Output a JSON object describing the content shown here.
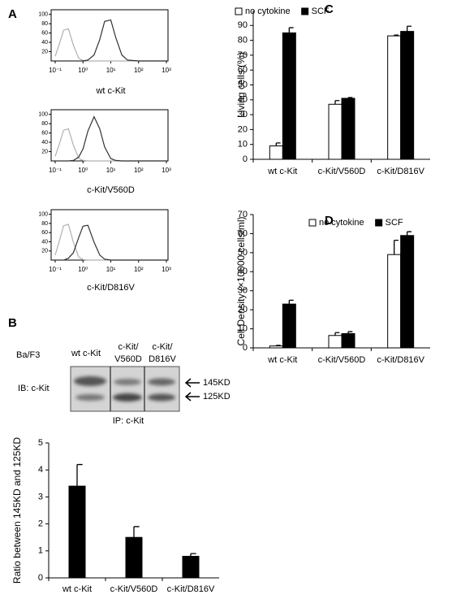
{
  "chart_data": [
    {
      "type": "flow",
      "panel": "A",
      "xlabel": "wt c-Kit",
      "log_x": true,
      "x": [
        0.1,
        0.15,
        0.2,
        0.3,
        0.45,
        0.7,
        1,
        1.5,
        2.5,
        4,
        6,
        10,
        15,
        25,
        40,
        100,
        1000
      ],
      "xlim": [
        0.1,
        1000
      ],
      "ylim": [
        0,
        110
      ],
      "xticks": [
        {
          "value": 0.1,
          "label": "10⁻¹"
        },
        {
          "value": 1,
          "label": "10⁰"
        },
        {
          "value": 10,
          "label": "10¹"
        },
        {
          "value": 100,
          "label": "10²"
        },
        {
          "value": 1000,
          "label": "10³"
        }
      ],
      "yticks": [
        20,
        40,
        60,
        80,
        100
      ],
      "series": [
        {
          "color": "#b0b0b0",
          "values": [
            10,
            41,
            66,
            69,
            34,
            6,
            1,
            0,
            0,
            0,
            0,
            0,
            0,
            0,
            0,
            0,
            0
          ]
        },
        {
          "color": "#333333",
          "values": [
            0,
            0,
            0,
            0,
            0,
            0,
            0,
            2,
            13,
            46,
            85,
            88,
            51,
            13,
            2,
            0,
            0
          ]
        }
      ]
    },
    {
      "type": "flow",
      "xlabel": "c-Kit/V560D",
      "log_x": true,
      "x": [
        0.1,
        0.15,
        0.2,
        0.3,
        0.45,
        0.7,
        1,
        1.5,
        2.5,
        4,
        6,
        10,
        15,
        25,
        40,
        100,
        1000
      ],
      "xlim": [
        0.1,
        1000
      ],
      "ylim": [
        0,
        110
      ],
      "xticks": [
        {
          "value": 0.1,
          "label": "10⁻¹"
        },
        {
          "value": 1,
          "label": "10⁰"
        },
        {
          "value": 10,
          "label": "10¹"
        },
        {
          "value": 100,
          "label": "10²"
        },
        {
          "value": 1000,
          "label": "10³"
        }
      ],
      "yticks": [
        20,
        40,
        60,
        80,
        100
      ],
      "series": [
        {
          "color": "#b0b0b0",
          "values": [
            10,
            41,
            66,
            69,
            34,
            6,
            1,
            0,
            0,
            0,
            0,
            0,
            0,
            0,
            0,
            0,
            0
          ]
        },
        {
          "color": "#333333",
          "values": [
            0,
            0,
            0,
            0,
            1,
            8,
            26,
            64,
            95,
            69,
            30,
            5,
            1,
            0,
            0,
            0,
            0
          ]
        }
      ]
    },
    {
      "type": "flow",
      "xlabel": "c-Kit/D816V",
      "log_x": true,
      "x": [
        0.1,
        0.15,
        0.2,
        0.3,
        0.45,
        0.7,
        1,
        1.5,
        2.5,
        4,
        6,
        10,
        15,
        25,
        40,
        100,
        1000
      ],
      "xlim": [
        0.1,
        1000
      ],
      "ylim": [
        0,
        110
      ],
      "xticks": [
        {
          "value": 0.1,
          "label": "10⁻¹"
        },
        {
          "value": 1,
          "label": "10⁰"
        },
        {
          "value": 10,
          "label": "10¹"
        },
        {
          "value": 100,
          "label": "10²"
        },
        {
          "value": 1000,
          "label": "10³"
        }
      ],
      "yticks": [
        20,
        40,
        60,
        80,
        100
      ],
      "series": [
        {
          "color": "#b0b0b0",
          "values": [
            11,
            47,
            75,
            78,
            39,
            7,
            1,
            0,
            0,
            0,
            0,
            0,
            0,
            0,
            0,
            0,
            0
          ]
        },
        {
          "color": "#333333",
          "values": [
            0,
            0,
            0,
            4,
            16,
            49,
            74,
            76,
            39,
            11,
            2,
            0,
            0,
            0,
            0,
            0,
            0
          ]
        }
      ]
    },
    {
      "type": "bar",
      "ylabel": "Ratio between 145KD and 125KD",
      "categories": [
        "wt c-Kit",
        "c-Kit/V560D",
        "c-Kit/D816V"
      ],
      "ylim": [
        0,
        5
      ],
      "yticks": [
        0,
        1,
        2,
        3,
        4,
        5
      ],
      "series": [
        {
          "color": "#000000",
          "values": [
            3.4,
            1.5,
            0.8
          ],
          "errors": [
            0.8,
            0.4,
            0.1
          ]
        }
      ]
    },
    {
      "type": "bar",
      "panel": "C",
      "ylabel": "Living cells (%)",
      "categories": [
        "wt c-Kit",
        "c-Kit/V560D",
        "c-Kit/D816V"
      ],
      "ylim": [
        0,
        100
      ],
      "yticks": [
        0,
        10,
        20,
        30,
        40,
        50,
        60,
        70,
        80,
        90
      ],
      "series": [
        {
          "name": "no cytokine",
          "color": "#ffffff",
          "values": [
            9,
            37,
            83
          ],
          "errors": [
            2,
            2.5,
            0.5
          ]
        },
        {
          "name": "SCF",
          "color": "#000000",
          "values": [
            85,
            41,
            86
          ],
          "errors": [
            3.5,
            0.5,
            3.5
          ]
        }
      ]
    },
    {
      "type": "bar",
      "panel": "D",
      "ylabel": "Cell Density (×10000 cells/ml)",
      "categories": [
        "wt c-Kit",
        "c-Kit/V560D",
        "c-Kit/D816V"
      ],
      "ylim": [
        0,
        70
      ],
      "yticks": [
        0,
        10,
        20,
        30,
        40,
        50,
        60,
        70
      ],
      "series": [
        {
          "name": "no cytokine",
          "color": "#ffffff",
          "values": [
            1,
            6.5,
            49
          ],
          "errors": [
            0.3,
            1.5,
            7.5
          ]
        },
        {
          "name": "SCF",
          "color": "#000000",
          "values": [
            23,
            7.5,
            59
          ],
          "errors": [
            2,
            1,
            2
          ]
        }
      ]
    }
  ],
  "blot": {
    "panel": "B",
    "cell_line": "Ba/F3",
    "lanes": [
      [
        "wt c-Kit"
      ],
      [
        "c-Kit/",
        "V560D"
      ],
      [
        "c-Kit/",
        "D816V"
      ]
    ],
    "ib": "IB: c-Kit",
    "bands": [
      "145KD",
      "125KD"
    ],
    "ip": "IP: c-Kit"
  }
}
